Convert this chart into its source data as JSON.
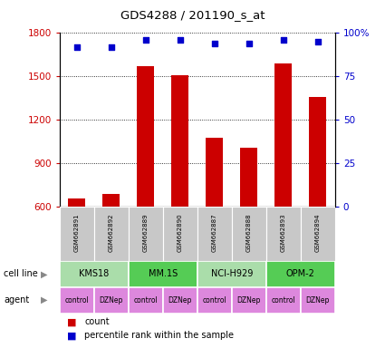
{
  "title": "GDS4288 / 201190_s_at",
  "samples": [
    "GSM662891",
    "GSM662892",
    "GSM662889",
    "GSM662890",
    "GSM662887",
    "GSM662888",
    "GSM662893",
    "GSM662894"
  ],
  "counts": [
    660,
    690,
    1570,
    1510,
    1080,
    1010,
    1590,
    1360
  ],
  "percentiles": [
    92,
    92,
    96,
    96,
    94,
    94,
    96,
    95
  ],
  "ylim_left": [
    600,
    1800
  ],
  "ylim_right": [
    0,
    100
  ],
  "yticks_left": [
    600,
    900,
    1200,
    1500,
    1800
  ],
  "yticks_right": [
    0,
    25,
    50,
    75,
    100
  ],
  "bar_color": "#cc0000",
  "dot_color": "#0000cc",
  "cell_lines": [
    {
      "label": "KMS18",
      "span": [
        0,
        2
      ],
      "color": "#aaddaa"
    },
    {
      "label": "MM.1S",
      "span": [
        2,
        4
      ],
      "color": "#55cc55"
    },
    {
      "label": "NCI-H929",
      "span": [
        4,
        6
      ],
      "color": "#aaddaa"
    },
    {
      "label": "OPM-2",
      "span": [
        6,
        8
      ],
      "color": "#55cc55"
    }
  ],
  "agents": [
    "control",
    "DZNep",
    "control",
    "DZNep",
    "control",
    "DZNep",
    "control",
    "DZNep"
  ],
  "agent_color": "#dd88dd",
  "left_axis_color": "#cc0000",
  "right_axis_color": "#0000cc",
  "background_color": "#ffffff",
  "cell_line_row_label": "cell line",
  "agent_row_label": "agent",
  "bar_width": 0.5
}
